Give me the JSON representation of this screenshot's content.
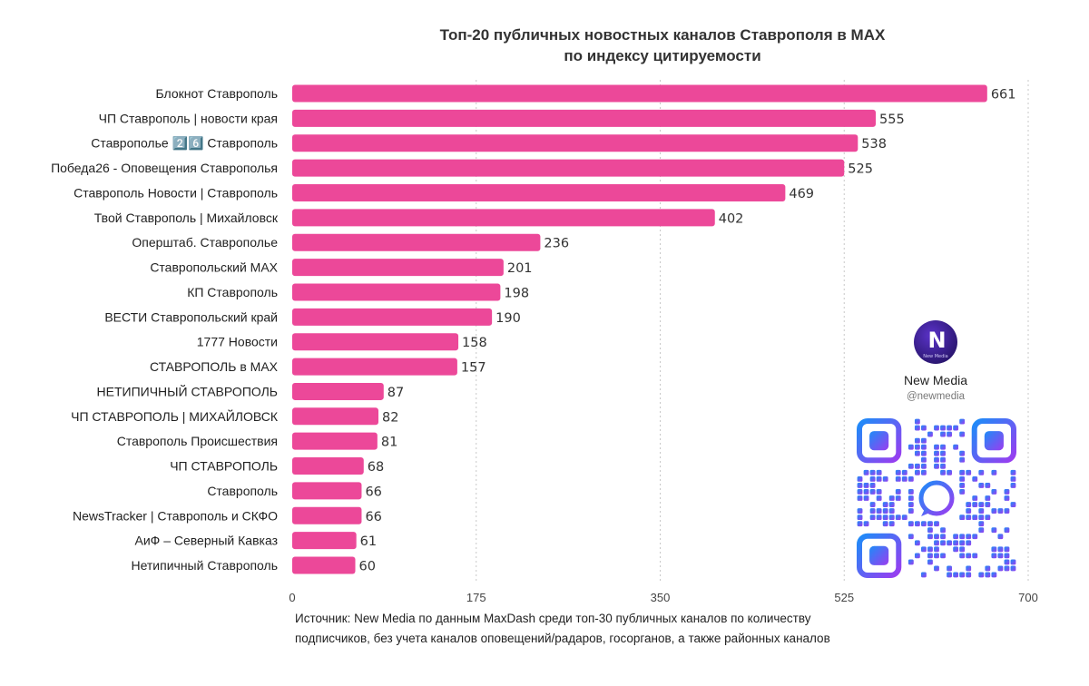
{
  "chart_data": {
    "type": "bar",
    "orientation": "horizontal",
    "title_line1": "Топ-20 публичных новостных каналов Ставрополя в MAX",
    "title_line2": "по индексу цитируемости",
    "categories": [
      "Блокнот Ставрополь",
      "ЧП Ставрополь | новости края",
      "Ставрополье 2️⃣6️⃣ Ставрополь",
      "Победа26 - Оповещения Ставрополья",
      "Ставрополь Новости | Ставрополь",
      "Твой Ставрополь | Михайловск",
      "Оперштаб. Ставрополье",
      "Ставропольский MAX",
      "КП Ставрополь",
      "ВЕСТИ Ставропольский край",
      "1777 Новости",
      "СТАВРОПОЛЬ в MAX",
      "НЕТИПИЧНЫЙ СТАВРОПОЛЬ",
      "ЧП СТАВРОПОЛЬ | МИХАЙЛОВСК",
      "Ставрополь Происшествия",
      "ЧП СТАВРОПОЛЬ",
      "Ставрополь",
      "NewsTracker | Ставрополь и СКФО",
      "АиФ – Северный Кавказ",
      "Нетипичный Ставрополь"
    ],
    "values": [
      661,
      555,
      538,
      525,
      469,
      402,
      236,
      201,
      198,
      190,
      158,
      157,
      87,
      82,
      81,
      68,
      66,
      66,
      61,
      60
    ],
    "xlim": [
      0,
      700
    ],
    "xticks": [
      0,
      175,
      350,
      525,
      700
    ],
    "grid": true,
    "bar_color": "#ec4899"
  },
  "source_line1": "Источник: New Media по данным MaxDash среди топ-30 публичных каналов по количеству",
  "source_line2": "подписчиков, без учета каналов оповещений/радаров, госорганов, а также районных каналов",
  "brand": {
    "name": "New Media",
    "handle": "@newmedia",
    "logo_letters": "N",
    "logo_caption": "New Media"
  },
  "colors": {
    "qr_gradient_start": "#1d8cf8",
    "qr_gradient_end": "#9b3cf0"
  }
}
